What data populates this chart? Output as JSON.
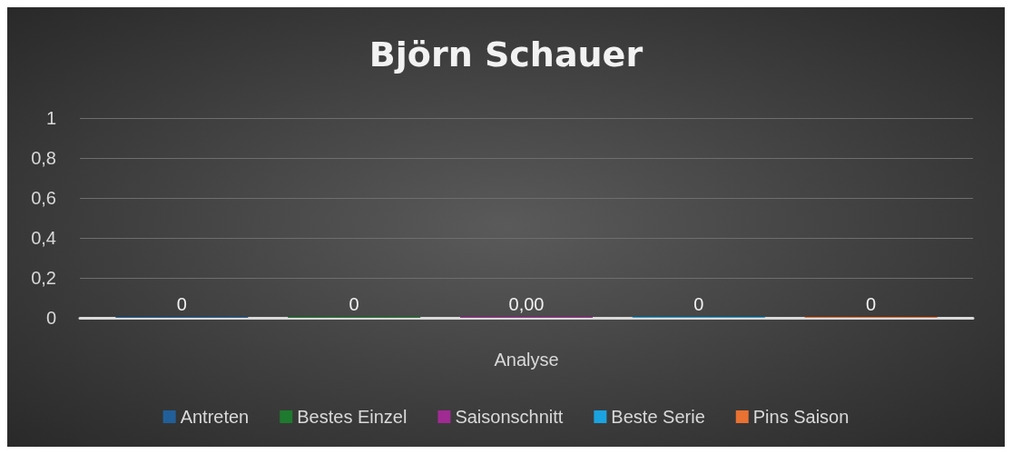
{
  "chart_data": {
    "type": "bar",
    "title": "Björn Schauer",
    "xlabel": "Analyse",
    "categories": [
      null
    ],
    "series": [
      {
        "name": "Antreten",
        "color": "#215f9a",
        "values": [
          0
        ],
        "value_labels": [
          "0"
        ]
      },
      {
        "name": "Bestes Einzel",
        "color": "#1e7a2e",
        "values": [
          0
        ],
        "value_labels": [
          "0"
        ]
      },
      {
        "name": "Saisonschnitt",
        "color": "#a02b93",
        "values": [
          0
        ],
        "value_labels": [
          "0,00"
        ]
      },
      {
        "name": "Beste Serie",
        "color": "#1aa3e0",
        "values": [
          0
        ],
        "value_labels": [
          "0"
        ]
      },
      {
        "name": "Pins Saison",
        "color": "#e97132",
        "values": [
          0
        ],
        "value_labels": [
          "0"
        ]
      }
    ],
    "ylim": [
      0,
      1
    ],
    "yticks": [
      0,
      {
        "value": 0.2,
        "label": "0,2"
      },
      {
        "value": 0.4,
        "label": "0,4"
      },
      {
        "value": 0.6,
        "label": "0,6"
      },
      {
        "value": 0.8,
        "label": "0,8"
      },
      1
    ],
    "grid": "y",
    "legend": "bottom"
  }
}
